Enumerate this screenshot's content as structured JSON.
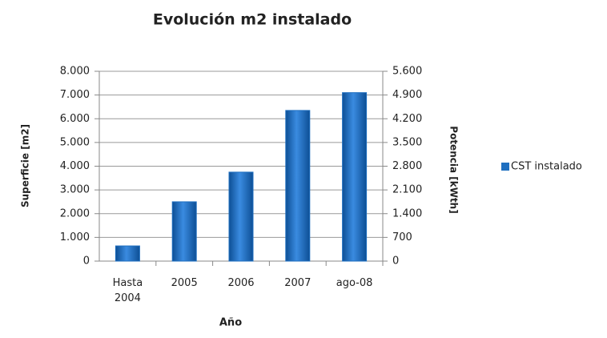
{
  "chart_data": {
    "type": "bar",
    "title": "Evolución m2 instalado",
    "x_label": "Año",
    "y_label": "Superficie [m2]",
    "y2_label": "Potencia [kWth]",
    "categories": [
      "Hasta 2004",
      "2005",
      "2006",
      "2007",
      "ago-08"
    ],
    "series": [
      {
        "name": "CST instalado",
        "color": "#1f6fc0",
        "values": [
          640,
          2500,
          3750,
          6350,
          7100
        ]
      }
    ],
    "ylim": [
      0,
      8000
    ],
    "yticks": [
      0,
      {
        "value": 1000,
        "label": "1.000"
      },
      {
        "value": 2000,
        "label": "2.000"
      },
      {
        "value": 3000,
        "label": "3.000"
      },
      {
        "value": 4000,
        "label": "4.000"
      },
      {
        "value": 5000,
        "label": "5.000"
      },
      {
        "value": 6000,
        "label": "6.000"
      },
      {
        "value": 7000,
        "label": "7.000"
      },
      {
        "value": 8000,
        "label": "8.000"
      }
    ],
    "y2lim": [
      0,
      5600
    ],
    "y2ticks": [
      0,
      700,
      {
        "value": 1400,
        "label": "1.400"
      },
      {
        "value": 2100,
        "label": "2.100"
      },
      {
        "value": 2800,
        "label": "2.800"
      },
      {
        "value": 3500,
        "label": "3.500"
      },
      {
        "value": 4200,
        "label": "4.200"
      },
      {
        "value": 4900,
        "label": "4.900"
      },
      {
        "value": 5600,
        "label": "5.600"
      }
    ],
    "grid": true,
    "legend": "right"
  }
}
